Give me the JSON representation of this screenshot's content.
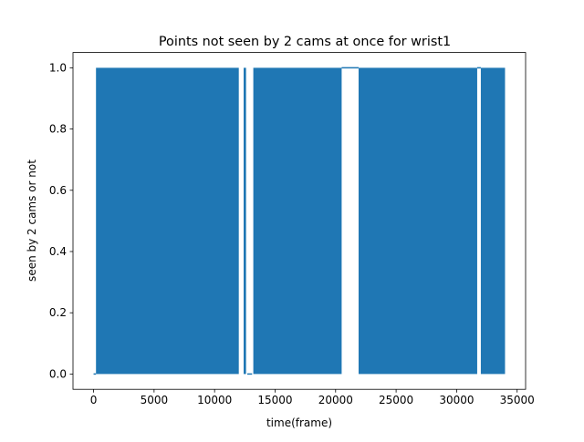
{
  "chart_data": {
    "type": "line",
    "title": "Points not seen by 2 cams at once for wrist1",
    "xlabel": "time(frame)",
    "ylabel": "seen by 2 cams or not",
    "xlim": [
      -1700,
      35700
    ],
    "ylim": [
      -0.05,
      1.05
    ],
    "xticks": [
      0,
      5000,
      10000,
      15000,
      20000,
      25000,
      30000,
      35000
    ],
    "xtick_labels": [
      "0",
      "5000",
      "10000",
      "15000",
      "20000",
      "25000",
      "30000",
      "35000"
    ],
    "yticks": [
      0.0,
      0.2,
      0.4,
      0.6,
      0.8,
      1.0
    ],
    "ytick_labels": [
      "0.0",
      "0.2",
      "0.4",
      "0.6",
      "0.8",
      "1.0"
    ],
    "grid": false,
    "legend": false,
    "series": [
      {
        "color": "#1f77b4",
        "x_range": [
          0,
          34000
        ],
        "values_range": [
          0,
          1
        ],
        "rapid_toggle_intervals": [
          [
            200,
            12000
          ],
          [
            12400,
            12600
          ],
          [
            13200,
            20500
          ],
          [
            21900,
            31700
          ],
          [
            32000,
            34000
          ]
        ],
        "constant_zero_intervals": [
          [
            0,
            200
          ],
          [
            12700,
            13100
          ]
        ],
        "constant_one_intervals": [
          [
            20500,
            21900
          ],
          [
            31700,
            32000
          ]
        ]
      }
    ]
  }
}
